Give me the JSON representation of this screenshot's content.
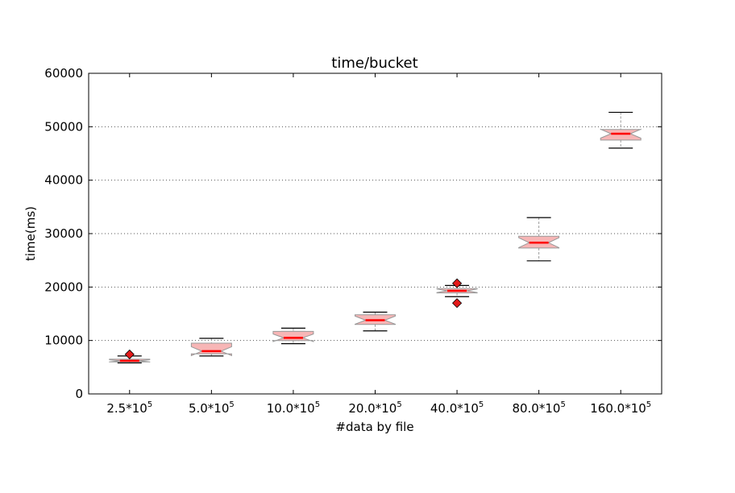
{
  "chart_data": {
    "type": "box",
    "title": "time/bucket",
    "xlabel": "#data by file",
    "ylabel": "time(ms)",
    "ylim": [
      0,
      60000
    ],
    "yticks": [
      "0",
      "10000",
      "20000",
      "30000",
      "40000",
      "50000",
      "60000"
    ],
    "grid": "horizontal dotted",
    "notched": true,
    "categories": [
      {
        "base": "2.5*10",
        "exp": "5"
      },
      {
        "base": "5.0*10",
        "exp": "5"
      },
      {
        "base": "10.0*10",
        "exp": "5"
      },
      {
        "base": "20.0*10",
        "exp": "5"
      },
      {
        "base": "40.0*10",
        "exp": "5"
      },
      {
        "base": "80.0*10",
        "exp": "5"
      },
      {
        "base": "160.0*10",
        "exp": "5"
      }
    ],
    "boxes": [
      {
        "whislo": 5800,
        "q1": 6000,
        "med": 6200,
        "q3": 6500,
        "whishi": 7100,
        "fliers": [
          7400
        ]
      },
      {
        "whislo": 7100,
        "q1": 7500,
        "med": 8000,
        "q3": 9500,
        "whishi": 10400,
        "fliers": []
      },
      {
        "whislo": 9400,
        "q1": 10000,
        "med": 10500,
        "q3": 11700,
        "whishi": 12300,
        "fliers": []
      },
      {
        "whislo": 11800,
        "q1": 13000,
        "med": 13800,
        "q3": 14800,
        "whishi": 15300,
        "fliers": []
      },
      {
        "whislo": 18200,
        "q1": 18900,
        "med": 19300,
        "q3": 19700,
        "whishi": 20300,
        "fliers": [
          17000,
          20700
        ]
      },
      {
        "whislo": 24900,
        "q1": 27300,
        "med": 28300,
        "q3": 29500,
        "whishi": 33000,
        "fliers": []
      },
      {
        "whislo": 46000,
        "q1": 47500,
        "med": 48700,
        "q3": 49500,
        "whishi": 52700,
        "fliers": []
      }
    ],
    "colors": {
      "box_fill": "#f7b6b6",
      "box_edge": "#999999",
      "median": "#ff0000",
      "whisker": "#000000",
      "flier": "#e31a1a",
      "grid": "#555555"
    }
  }
}
